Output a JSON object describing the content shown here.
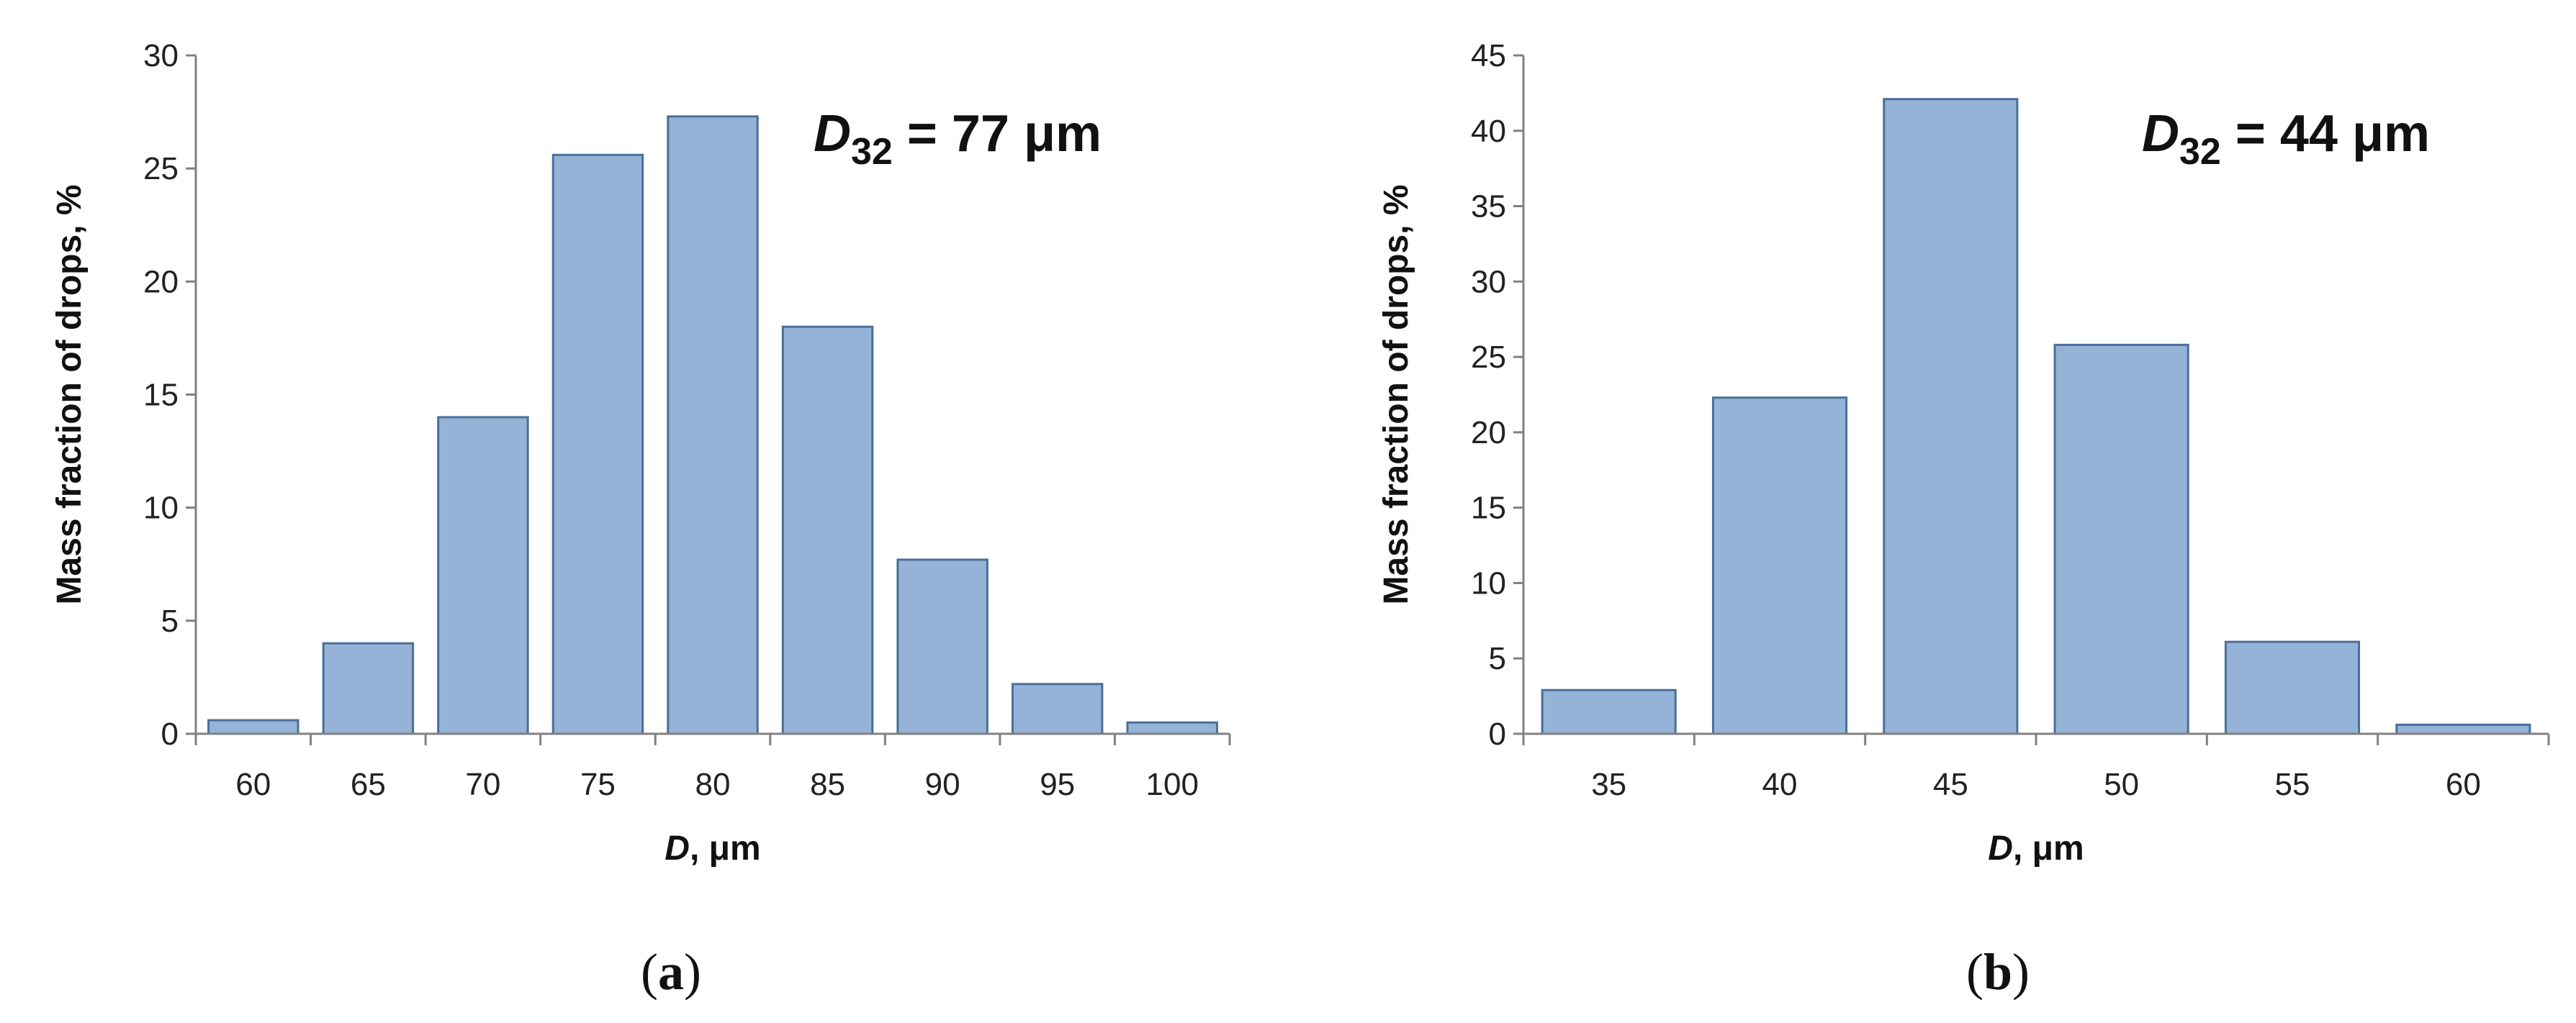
{
  "chart_data": [
    {
      "type": "bar",
      "panel_label": "(a)",
      "annotation": {
        "symbol": "D",
        "subscript": "32",
        "text": " = 77 μm"
      },
      "xlabel": {
        "symbol": "D",
        "text": ", μm"
      },
      "ylabel": "Mass fraction of drops, %",
      "categories": [
        "60",
        "65",
        "70",
        "75",
        "80",
        "85",
        "90",
        "95",
        "100"
      ],
      "values": [
        0.6,
        4.0,
        14.0,
        25.6,
        27.3,
        18.0,
        7.7,
        2.2,
        0.5
      ],
      "ylim": [
        0,
        30
      ],
      "yticks": [
        "0",
        "5",
        "10",
        "15",
        "20",
        "25",
        "30"
      ],
      "grid": false,
      "legend": "none",
      "bar_color": "#95b3d7",
      "bar_edge_color": "#4a6f99"
    },
    {
      "type": "bar",
      "panel_label": "(b)",
      "annotation": {
        "symbol": "D",
        "subscript": "32",
        "text": " = 44 μm"
      },
      "xlabel": {
        "symbol": "D",
        "text": ", μm"
      },
      "ylabel": "Mass fraction of drops, %",
      "categories": [
        "35",
        "40",
        "45",
        "50",
        "55",
        "60"
      ],
      "values": [
        2.9,
        22.3,
        42.1,
        25.8,
        6.1,
        0.6
      ],
      "ylim": [
        0,
        45
      ],
      "yticks": [
        "0",
        "5",
        "10",
        "15",
        "20",
        "25",
        "30",
        "35",
        "40",
        "45"
      ],
      "grid": false,
      "legend": "none",
      "bar_color": "#95b3d7",
      "bar_edge_color": "#4a6f99"
    }
  ]
}
